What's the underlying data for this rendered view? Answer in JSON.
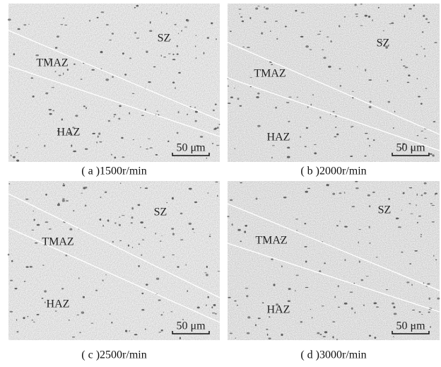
{
  "panels": [
    {
      "labels": {
        "sz": "SZ",
        "tmaz": "TMAZ",
        "haz": "HAZ"
      },
      "scale_bar": "50 μm",
      "caption": "( a )1500r/min"
    },
    {
      "labels": {
        "sz": "SZ",
        "tmaz": "TMAZ",
        "haz": "HAZ"
      },
      "scale_bar": "50 μm",
      "caption": "( b )2000r/min"
    },
    {
      "labels": {
        "sz": "SZ",
        "tmaz": "TMAZ",
        "haz": "HAZ"
      },
      "scale_bar": "50 μm",
      "caption": "( c )2500r/min"
    },
    {
      "labels": {
        "sz": "SZ",
        "tmaz": "TMAZ",
        "haz": "HAZ"
      },
      "scale_bar": "50 μm",
      "caption": "( d )3000r/min"
    }
  ]
}
